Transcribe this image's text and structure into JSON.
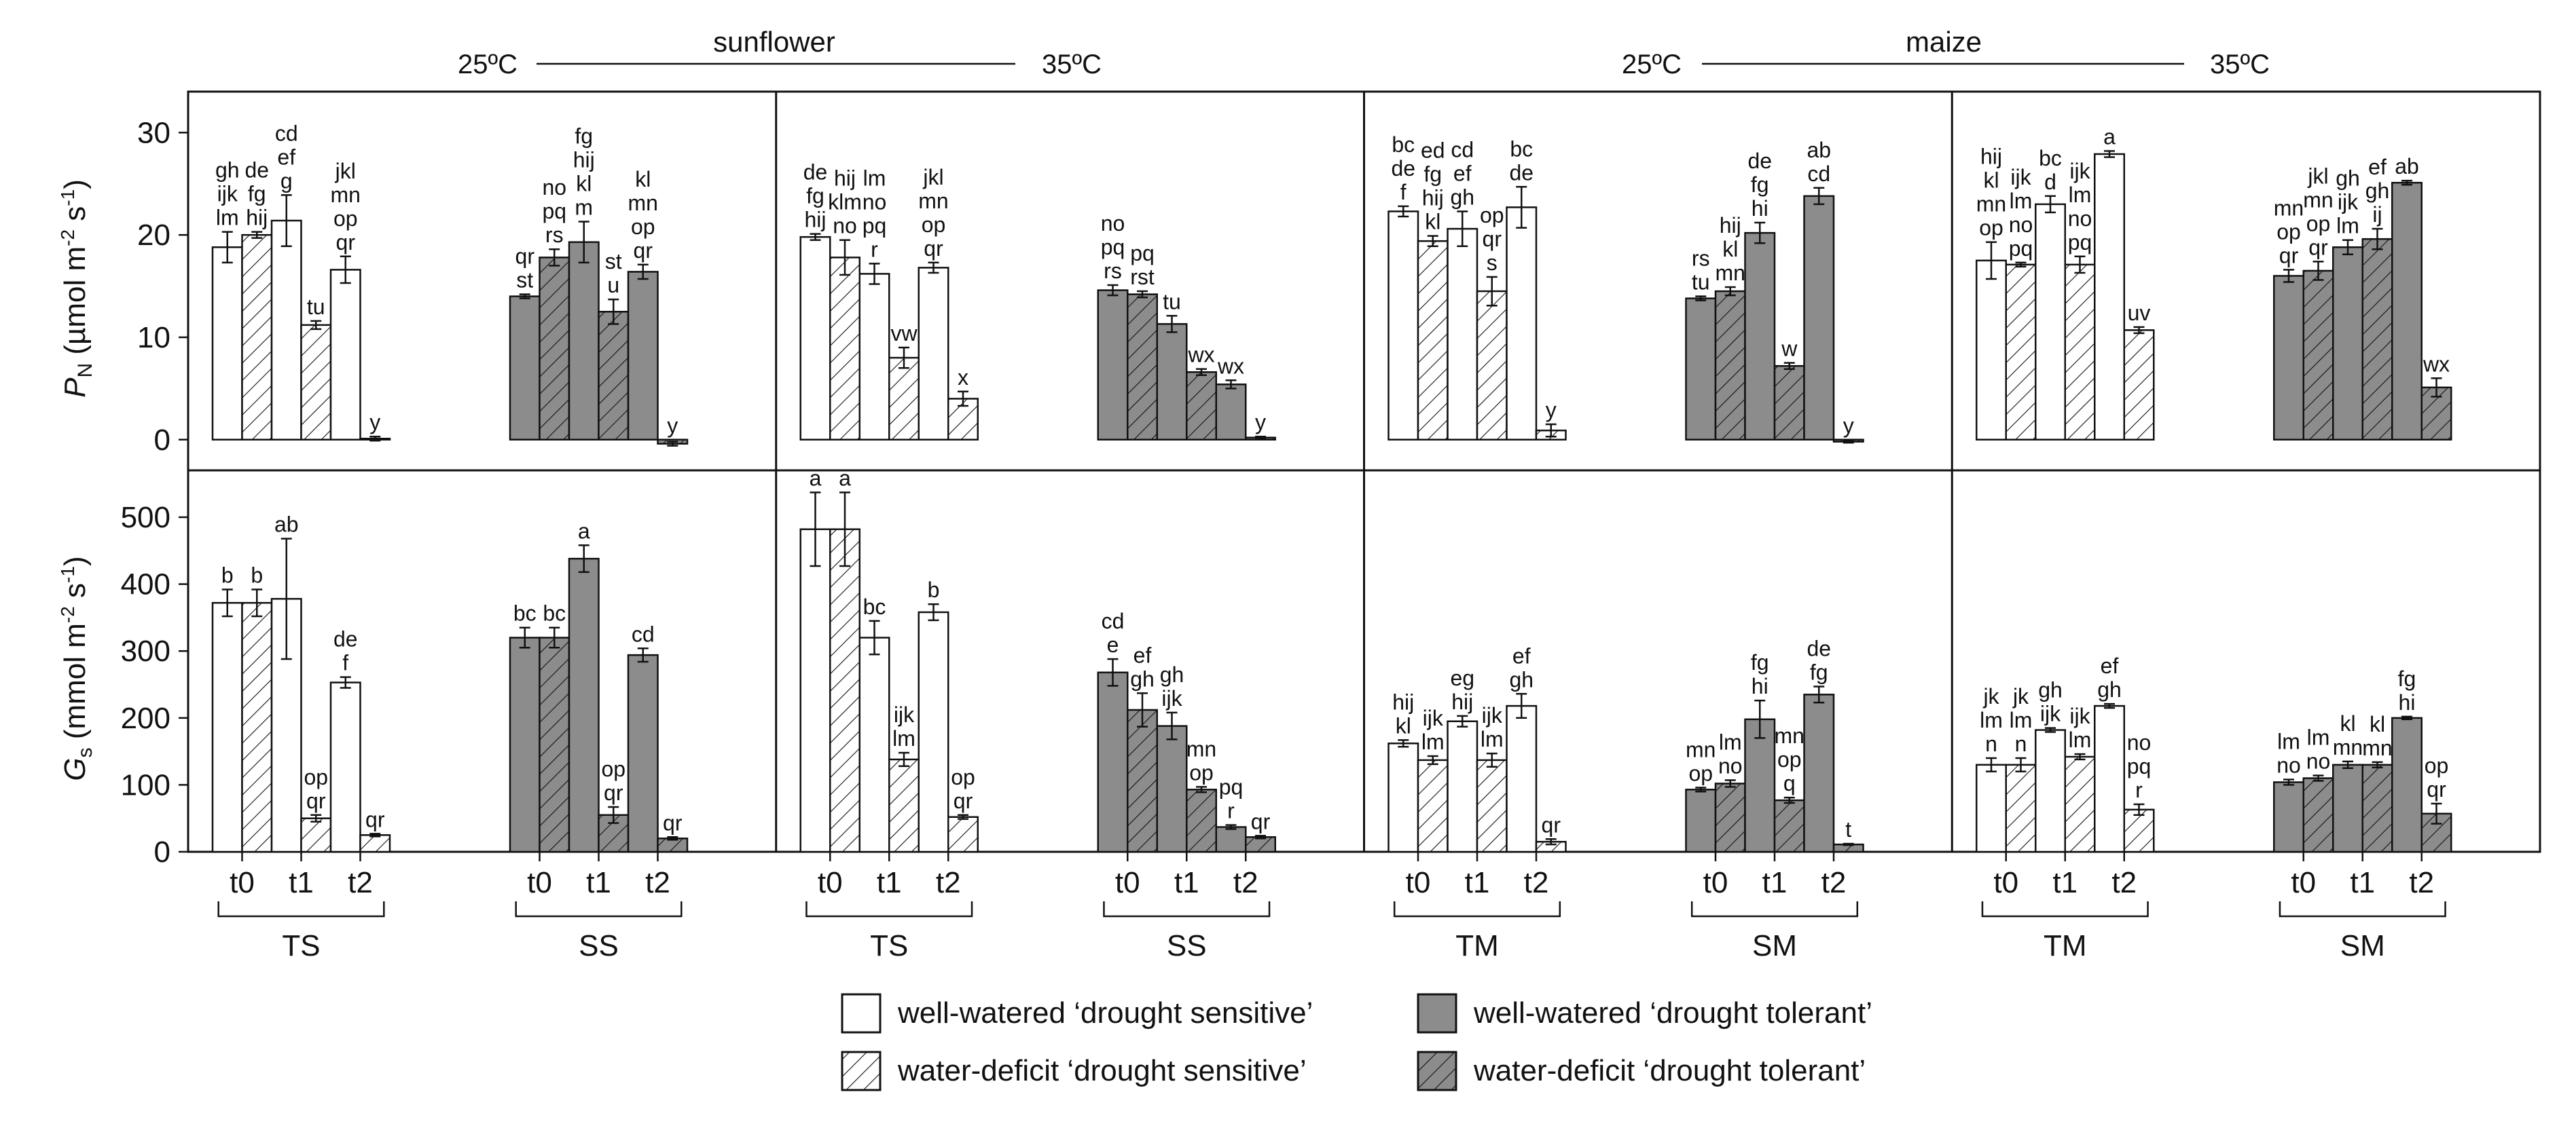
{
  "chart_data": {
    "type": "bar",
    "header": {
      "groups": [
        {
          "name": "sunflower",
          "left": "25ºC",
          "right": "35ºC"
        },
        {
          "name": "maize",
          "left": "25ºC",
          "right": "35ºC"
        }
      ]
    },
    "axes": {
      "pn": {
        "label_main": "P",
        "label_sub": "N",
        "label_rest": " (µmol m",
        "unit_sup1": "-2",
        "unit_mid": " s",
        "unit_sup2": "-1",
        "unit_end": ")",
        "ylim": [
          -3,
          34
        ],
        "ticks": [
          0,
          10,
          20,
          30
        ]
      },
      "gs": {
        "label_main": "G",
        "label_sub": "s",
        "label_rest": " (mmol m",
        "unit_sup1": "-2",
        "unit_mid": " s",
        "unit_sup2": "-1",
        "unit_end": ")",
        "ylim": [
          0,
          570
        ],
        "ticks": [
          0,
          100,
          200,
          300,
          400,
          500
        ]
      }
    },
    "time_labels": [
      "t0",
      "t1",
      "t2"
    ],
    "legend": [
      {
        "key": "ww_sens",
        "label": "well-watered ‘drought sensitive’"
      },
      {
        "key": "wd_sens",
        "label": "water-deficit ‘drought sensitive’"
      },
      {
        "key": "ww_tol",
        "label": "well-watered ‘drought tolerant’"
      },
      {
        "key": "wd_tol",
        "label": "water-deficit ‘drought tolerant’"
      }
    ],
    "panels": [
      {
        "crop": "sunflower",
        "temperature": "25ºC",
        "genotypes": [
          {
            "name": "TS",
            "tolerant": false,
            "pn": [
              [
                18.8,
                1.5,
                "gh\nijk\nlm"
              ],
              [
                20.0,
                0.3,
                "de\nfg\nhij"
              ],
              [
                21.4,
                2.5,
                "cd\nef\ng"
              ],
              [
                11.2,
                0.4,
                "tu"
              ],
              [
                16.6,
                1.3,
                "jkl\nmn\nop\nqr"
              ],
              [
                0.1,
                0.2,
                "y"
              ]
            ],
            "gs": [
              [
                372,
                20,
                "b"
              ],
              [
                372,
                20,
                "b"
              ],
              [
                378,
                90,
                "ab"
              ],
              [
                50,
                5,
                "op\nqr"
              ],
              [
                253,
                8,
                "de\nf"
              ],
              [
                25,
                2,
                "qr"
              ]
            ]
          },
          {
            "name": "SS",
            "tolerant": true,
            "pn": [
              [
                14.0,
                0.2,
                "qr\nst"
              ],
              [
                17.8,
                0.8,
                "no\npq\nrs"
              ],
              [
                19.3,
                2.0,
                "fg\nhij\nkl\nm"
              ],
              [
                12.5,
                1.2,
                "st\nu"
              ],
              [
                16.4,
                0.7,
                "kl\nmn\nop\nqr"
              ],
              [
                -0.4,
                0.2,
                "y"
              ]
            ],
            "gs": [
              [
                320,
                15,
                "bc"
              ],
              [
                320,
                15,
                "bc"
              ],
              [
                438,
                20,
                "a"
              ],
              [
                55,
                12,
                "op\nqr"
              ],
              [
                294,
                10,
                "cd"
              ],
              [
                20,
                2,
                "qr"
              ]
            ]
          }
        ]
      },
      {
        "crop": "sunflower",
        "temperature": "35ºC",
        "genotypes": [
          {
            "name": "TS",
            "tolerant": false,
            "pn": [
              [
                19.8,
                0.3,
                "de\nfg\nhij"
              ],
              [
                17.8,
                1.7,
                "hij\nklm\nno"
              ],
              [
                16.2,
                1.0,
                "lm\nno\npq\nr"
              ],
              [
                8.0,
                1.0,
                "vw"
              ],
              [
                16.8,
                0.5,
                "jkl\nmn\nop\nqr"
              ],
              [
                4.0,
                0.7,
                "x"
              ]
            ],
            "gs": [
              [
                482,
                55,
                "a"
              ],
              [
                482,
                55,
                "a"
              ],
              [
                320,
                25,
                "bc"
              ],
              [
                138,
                10,
                "ijk\nlm"
              ],
              [
                358,
                12,
                "b"
              ],
              [
                52,
                3,
                "op\nqr"
              ]
            ]
          },
          {
            "name": "SS",
            "tolerant": true,
            "pn": [
              [
                14.6,
                0.5,
                "no\npq\nrs"
              ],
              [
                14.2,
                0.3,
                "pq\nrst"
              ],
              [
                11.3,
                0.8,
                "tu"
              ],
              [
                6.6,
                0.3,
                "wx"
              ],
              [
                5.4,
                0.4,
                "wx"
              ],
              [
                0.2,
                0.1,
                "y"
              ]
            ],
            "gs": [
              [
                268,
                20,
                "cd\ne"
              ],
              [
                212,
                25,
                "ef\ngh"
              ],
              [
                188,
                20,
                "gh\nijk"
              ],
              [
                93,
                4,
                "mn\nop"
              ],
              [
                37,
                3,
                "pq\nr"
              ],
              [
                22,
                2,
                "qr"
              ]
            ]
          }
        ]
      },
      {
        "crop": "maize",
        "temperature": "25ºC",
        "genotypes": [
          {
            "name": "TM",
            "tolerant": false,
            "pn": [
              [
                22.3,
                0.5,
                "bc\nde\nf"
              ],
              [
                19.4,
                0.5,
                "ed\nfg\nhij\nkl"
              ],
              [
                20.6,
                1.7,
                "cd\nef\ngh"
              ],
              [
                14.5,
                1.4,
                "op\nqr\ns"
              ],
              [
                22.7,
                2.0,
                "bc\nde"
              ],
              [
                0.9,
                0.6,
                "y"
              ]
            ],
            "gs": [
              [
                162,
                5,
                "hij\nkl"
              ],
              [
                137,
                6,
                "ijk\nlm"
              ],
              [
                195,
                8,
                "eg\nhij"
              ],
              [
                137,
                10,
                "ijk\nlm"
              ],
              [
                218,
                18,
                "ef\ngh"
              ],
              [
                15,
                4,
                "qr"
              ]
            ]
          },
          {
            "name": "SM",
            "tolerant": true,
            "pn": [
              [
                13.8,
                0.2,
                "rs\ntu"
              ],
              [
                14.5,
                0.4,
                "hij\nkl\nmn"
              ],
              [
                20.2,
                1.0,
                "de\nfg\nhi"
              ],
              [
                7.2,
                0.3,
                "w"
              ],
              [
                23.8,
                0.8,
                "ab\ncd"
              ],
              [
                -0.2,
                0.1,
                "y"
              ]
            ],
            "gs": [
              [
                93,
                3,
                "mn\nop"
              ],
              [
                102,
                5,
                "lm\nno"
              ],
              [
                198,
                28,
                "fg\nhi"
              ],
              [
                77,
                4,
                "mn\nop\nq"
              ],
              [
                235,
                12,
                "de\nfg"
              ],
              [
                11,
                1,
                "t"
              ]
            ]
          }
        ]
      },
      {
        "crop": "maize",
        "temperature": "35ºC",
        "genotypes": [
          {
            "name": "TM",
            "tolerant": false,
            "pn": [
              [
                17.5,
                1.8,
                "hij\nkl\nmn\nop"
              ],
              [
                17.1,
                0.2,
                "ijk\nlm\nno\npq"
              ],
              [
                23.0,
                0.8,
                "bc\nd"
              ],
              [
                17.1,
                0.8,
                "ijk\nlm\nno\npq"
              ],
              [
                27.9,
                0.3,
                "a"
              ],
              [
                10.7,
                0.3,
                "uv"
              ]
            ],
            "gs": [
              [
                130,
                10,
                "jk\nlm\nn"
              ],
              [
                130,
                10,
                "jk\nlm\nn"
              ],
              [
                182,
                3,
                "gh\nijk"
              ],
              [
                142,
                4,
                "ijk\nlm"
              ],
              [
                218,
                3,
                "ef\ngh"
              ],
              [
                63,
                8,
                "no\npq\nr"
              ]
            ]
          },
          {
            "name": "SM",
            "tolerant": true,
            "pn": [
              [
                16.0,
                0.6,
                "mn\nop\nqr"
              ],
              [
                16.5,
                0.9,
                "jkl\nmn\nop\nqr"
              ],
              [
                18.8,
                0.7,
                "gh\nijk\nlm"
              ],
              [
                19.6,
                1.0,
                "ef\ngh\nij"
              ],
              [
                25.1,
                0.2,
                "ab"
              ],
              [
                5.1,
                0.9,
                "wx"
              ]
            ],
            "gs": [
              [
                104,
                4,
                "lm\nno"
              ],
              [
                110,
                4,
                "lm\nno"
              ],
              [
                130,
                5,
                "kl\nmn"
              ],
              [
                130,
                4,
                "kl\nmn"
              ],
              [
                200,
                2,
                "fg\nhi"
              ],
              [
                57,
                15,
                "op\nqr"
              ]
            ]
          }
        ]
      }
    ]
  }
}
